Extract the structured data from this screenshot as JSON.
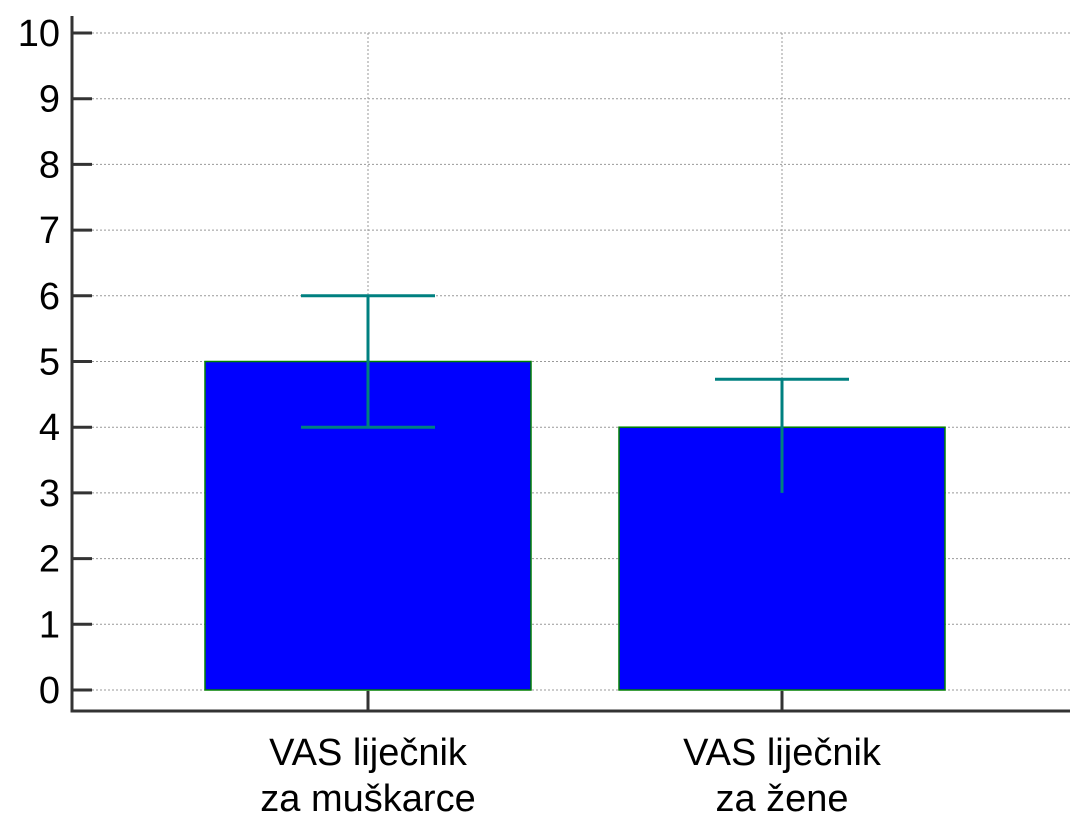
{
  "chart_data": {
    "type": "bar",
    "categories": [
      [
        "VAS liječnik",
        "za muškarce"
      ],
      [
        "VAS liječnik",
        "za žene"
      ]
    ],
    "values": [
      5,
      4
    ],
    "error_bars": [
      {
        "low": 4,
        "high": 6
      },
      {
        "low": 3,
        "high": 4.73
      }
    ],
    "ylim": [
      0,
      10
    ],
    "yticks": [
      0,
      1,
      2,
      3,
      4,
      5,
      6,
      7,
      8,
      9,
      10
    ],
    "grid": true,
    "colors": {
      "bar_fill": "#0000ff",
      "bar_edge": "#008000",
      "error_bar": "#008080",
      "axis": "#333333",
      "grid": "#999999"
    }
  }
}
